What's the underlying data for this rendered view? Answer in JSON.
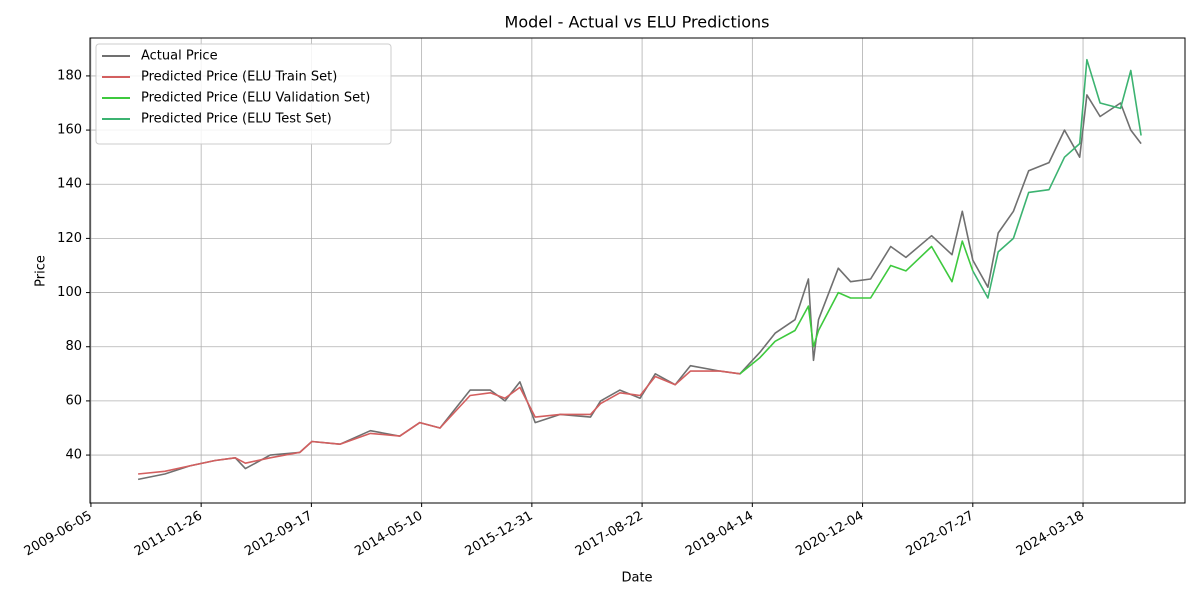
{
  "chart_data": {
    "type": "line",
    "title": "Model - Actual vs ELU Predictions",
    "x_label": "Date",
    "y_label": "Price",
    "x": [
      "2010-02-17",
      "2010-07-12",
      "2010-11-25",
      "2011-04-12",
      "2011-07-31",
      "2011-09-24",
      "2012-02-06",
      "2012-07-16",
      "2012-09-20",
      "2013-02-20",
      "2013-08-04",
      "2014-01-11",
      "2014-04-30",
      "2014-08-18",
      "2015-01-29",
      "2015-05-19",
      "2015-08-07",
      "2015-10-27",
      "2016-01-18",
      "2016-06-03",
      "2016-11-14",
      "2017-01-08",
      "2017-04-23",
      "2017-08-11",
      "2017-11-02",
      "2018-02-18",
      "2018-05-12",
      "2018-10-20",
      "2019-02-06",
      "2019-05-26",
      "2019-08-16",
      "2019-12-02",
      "2020-02-13",
      "2020-03-12",
      "2020-04-08",
      "2020-07-25",
      "2020-09-30",
      "2021-01-17",
      "2021-05-06",
      "2021-07-28",
      "2021-12-15",
      "2022-04-05",
      "2022-05-31",
      "2022-07-27",
      "2022-10-17",
      "2022-12-12",
      "2023-03-05",
      "2023-05-27",
      "2023-09-15",
      "2023-12-08",
      "2024-02-29",
      "2024-04-08",
      "2024-06-19",
      "2024-10-08",
      "2024-12-03",
      "2025-01-28"
    ],
    "series": [
      {
        "name": "Actual Price",
        "color": "#707070",
        "values": [
          31,
          33,
          36,
          38,
          39,
          35,
          40,
          41,
          45,
          44,
          49,
          47,
          52,
          50,
          64,
          64,
          60,
          67,
          52,
          55,
          54,
          60,
          64,
          61,
          70,
          66,
          73,
          71,
          70,
          78,
          85,
          90,
          105,
          75,
          90,
          109,
          104,
          105,
          117,
          113,
          121,
          114,
          130,
          112,
          102,
          122,
          130,
          145,
          148,
          160,
          150,
          173,
          165,
          170,
          160,
          155
        ]
      },
      {
        "name": "Predicted Price (ELU Train Set)",
        "color": "#d35f5f",
        "values": [
          33,
          34,
          36,
          38,
          39,
          37,
          39,
          41,
          45,
          44,
          48,
          47,
          52,
          50,
          62,
          63,
          61,
          65,
          54,
          55,
          55,
          59,
          63,
          62,
          69,
          66,
          71,
          71,
          70,
          null,
          null,
          null,
          null,
          null,
          null,
          null,
          null,
          null,
          null,
          null,
          null,
          null,
          null,
          null,
          null,
          null,
          null,
          null,
          null,
          null,
          null,
          null,
          null,
          null,
          null,
          null
        ]
      },
      {
        "name": "Predicted Price (ELU Validation Set)",
        "color": "#3ec93e",
        "values": [
          null,
          null,
          null,
          null,
          null,
          null,
          null,
          null,
          null,
          null,
          null,
          null,
          null,
          null,
          null,
          null,
          null,
          null,
          null,
          null,
          null,
          null,
          null,
          null,
          null,
          null,
          null,
          null,
          70,
          76,
          82,
          86,
          95,
          80,
          86,
          100,
          98,
          98,
          110,
          108,
          117,
          104,
          119,
          108,
          null,
          null,
          null,
          null,
          null,
          null,
          null,
          null,
          null,
          null,
          null,
          null
        ]
      },
      {
        "name": "Predicted Price (ELU Test Set)",
        "color": "#3cb371",
        "values": [
          null,
          null,
          null,
          null,
          null,
          null,
          null,
          null,
          null,
          null,
          null,
          null,
          null,
          null,
          null,
          null,
          null,
          null,
          null,
          null,
          null,
          null,
          null,
          null,
          null,
          null,
          null,
          null,
          null,
          null,
          null,
          null,
          null,
          null,
          null,
          null,
          null,
          null,
          null,
          null,
          null,
          null,
          null,
          108,
          98,
          115,
          120,
          137,
          138,
          150,
          155,
          186,
          170,
          168,
          182,
          158
        ]
      }
    ],
    "xlim": [
      "2009-05-31",
      "2025-09-24"
    ],
    "xticks": [
      "2009-06-05",
      "2011-01-26",
      "2012-09-17",
      "2014-05-10",
      "2015-12-31",
      "2017-08-22",
      "2019-04-14",
      "2020-12-04",
      "2022-07-27",
      "2024-03-18"
    ],
    "ylim": [
      22.3,
      194
    ],
    "yticks": [
      40,
      60,
      80,
      100,
      120,
      140,
      160,
      180
    ],
    "grid": true,
    "legend": "upper-left"
  }
}
